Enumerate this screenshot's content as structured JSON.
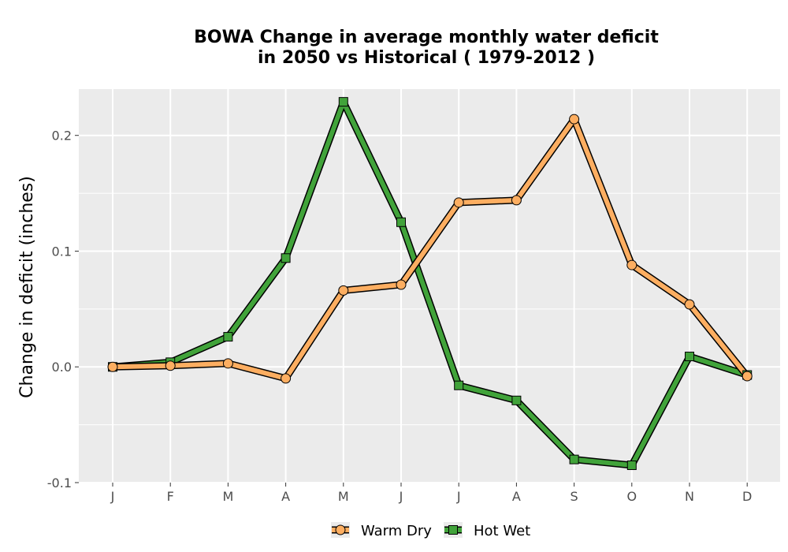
{
  "chart_data": {
    "type": "line",
    "title_line1": "BOWA  Change in average monthly water deficit",
    "title_line2": "in 2050 vs Historical ( 1979-2012 )",
    "xlabel": "",
    "ylabel": "Change in deficit (inches)",
    "categories": [
      "J",
      "F",
      "M",
      "A",
      "M",
      "J",
      "J",
      "A",
      "S",
      "O",
      "N",
      "D"
    ],
    "y_ticks": [
      -0.1,
      0.0,
      0.1,
      0.2
    ],
    "y_tick_labels": [
      "-0.1",
      "0.0",
      "0.1",
      "0.2"
    ],
    "ylim": [
      -0.1,
      0.24
    ],
    "grid": true,
    "legend_position": "bottom",
    "series": [
      {
        "name": "Warm Dry",
        "color": "#fdae61",
        "marker": "circle",
        "values": [
          0.0,
          0.001,
          0.003,
          -0.01,
          0.066,
          0.071,
          0.142,
          0.144,
          0.214,
          0.088,
          0.054,
          -0.008
        ]
      },
      {
        "name": "Hot Wet",
        "color": "#41a33a",
        "marker": "square",
        "values": [
          0.0,
          0.004,
          0.026,
          0.094,
          0.229,
          0.125,
          -0.016,
          -0.029,
          -0.08,
          -0.085,
          0.009,
          -0.007
        ]
      }
    ]
  }
}
